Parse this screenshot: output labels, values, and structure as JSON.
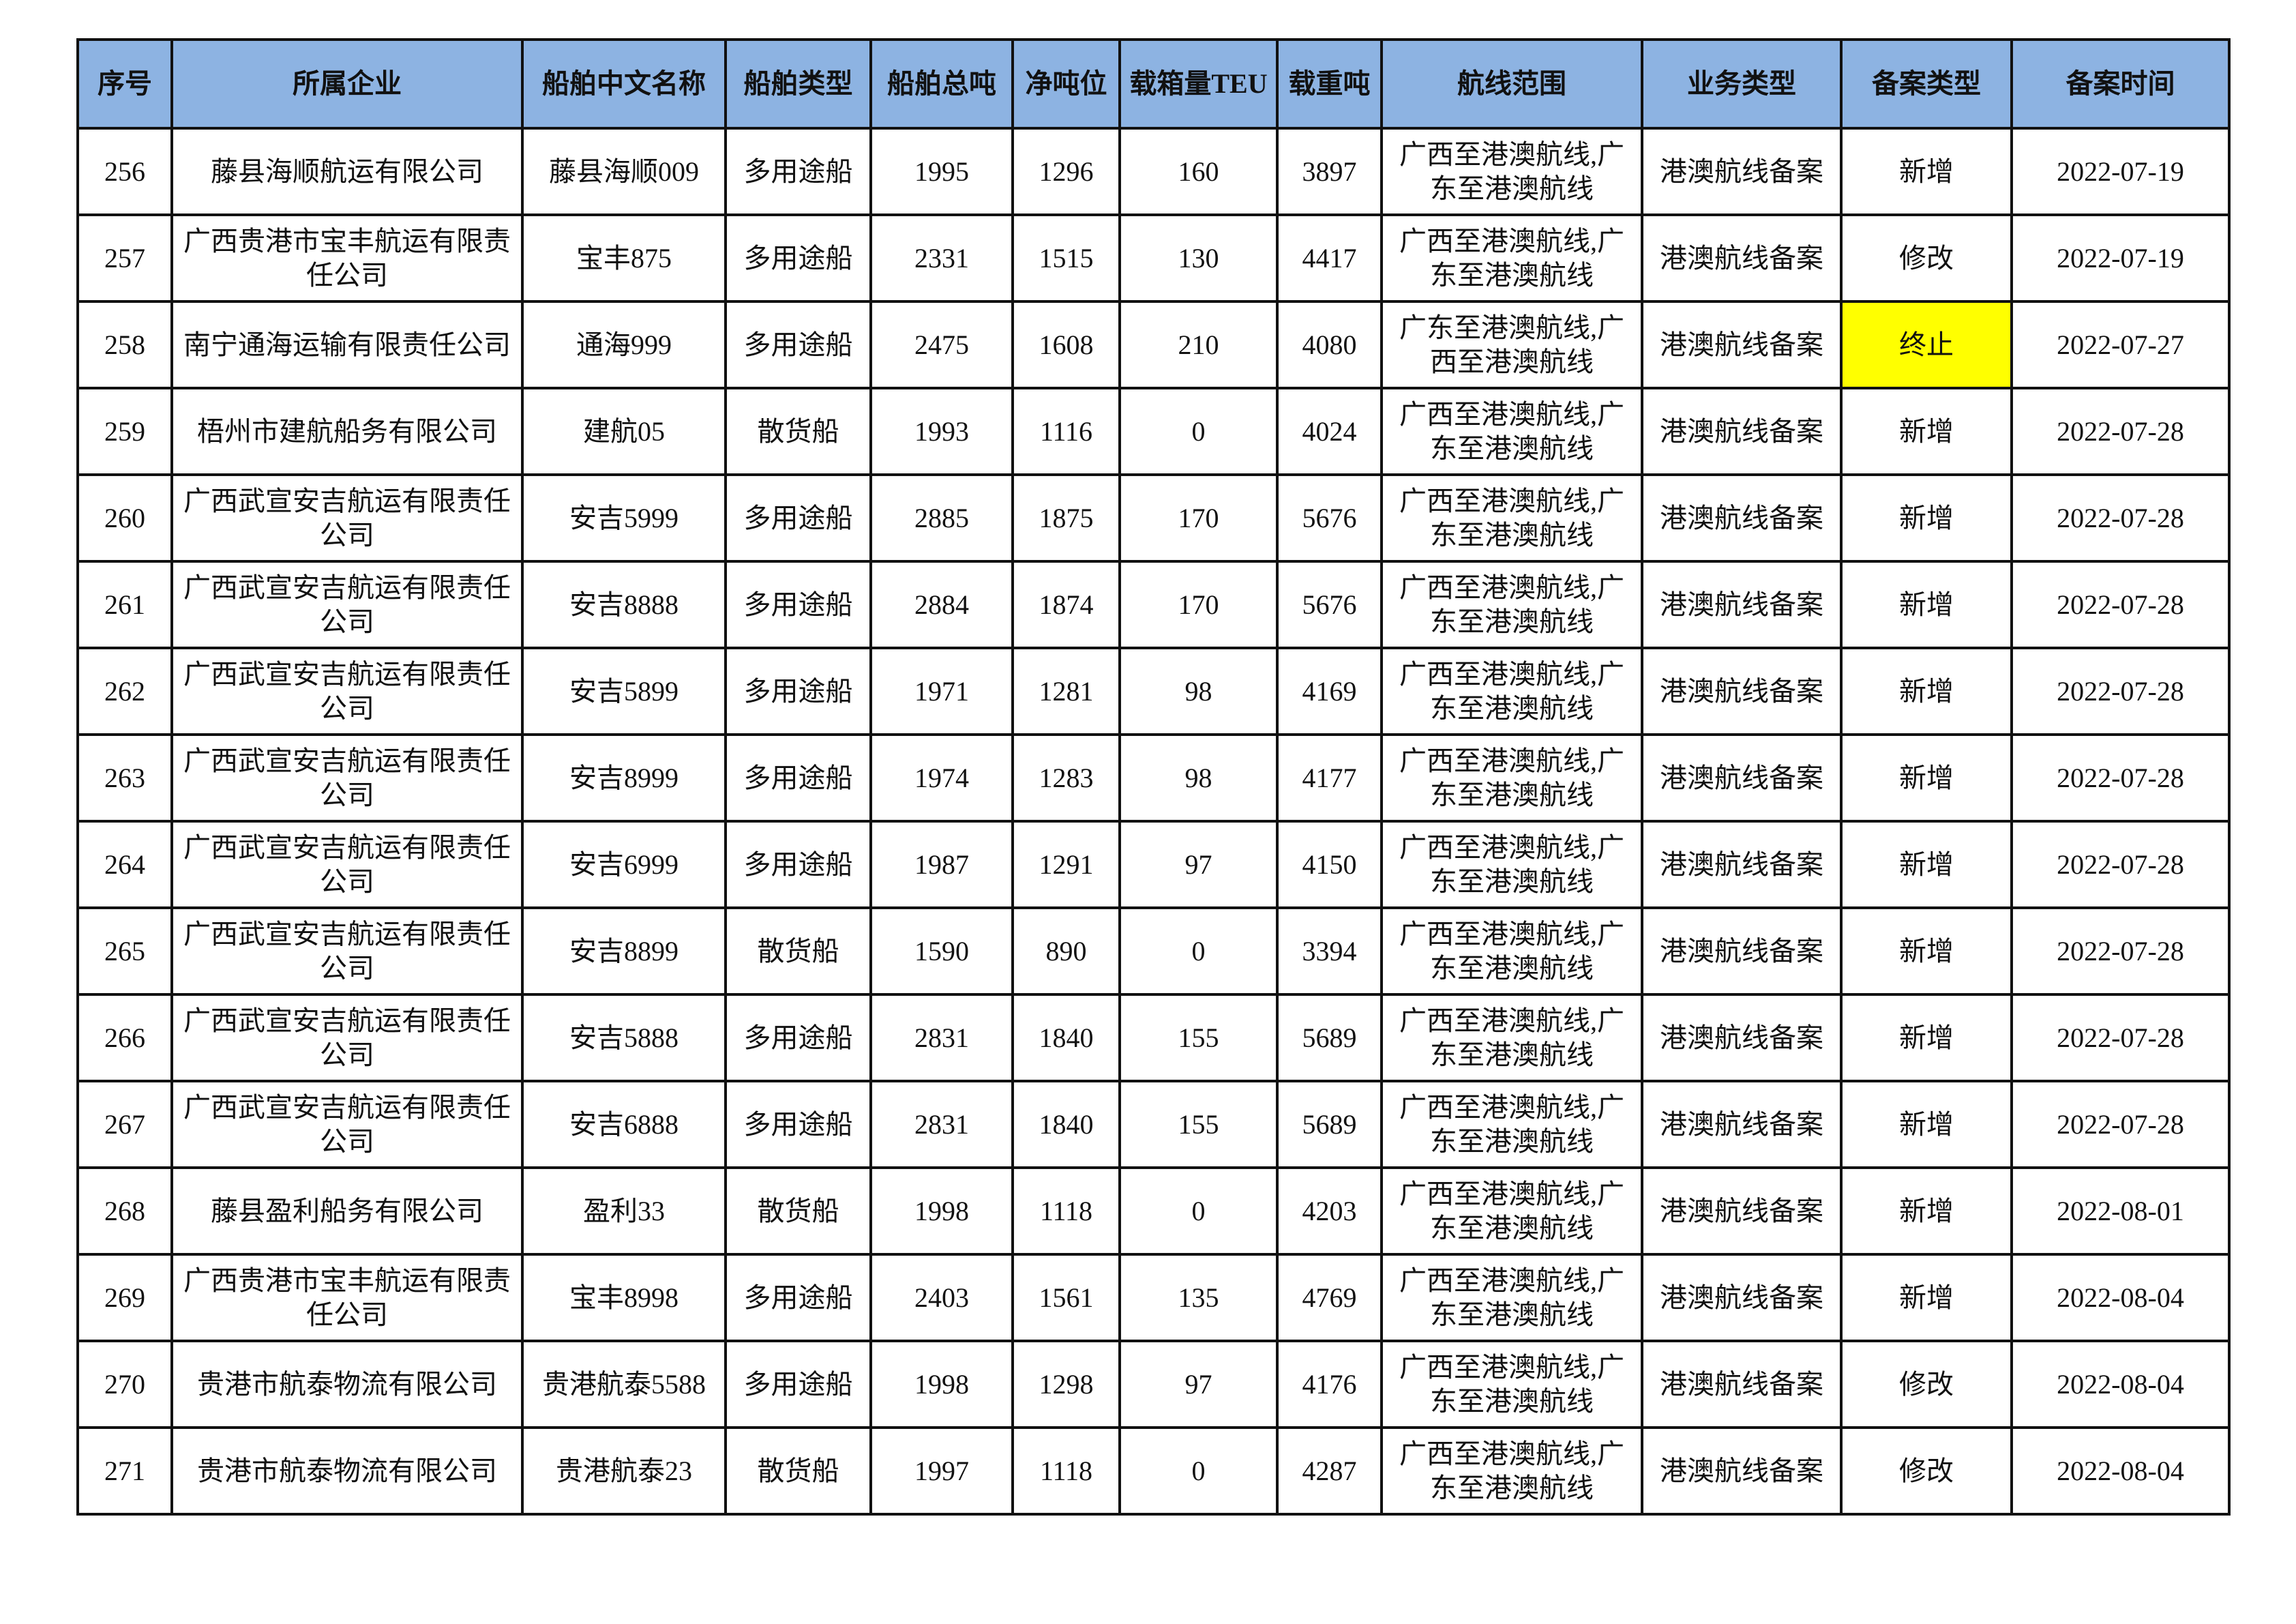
{
  "headers": [
    "序号",
    "所属企业",
    "船舶中文名称",
    "船舶类型",
    "船舶总吨",
    "净吨位",
    "载箱量TEU",
    "载重吨",
    "航线范围",
    "业务类型",
    "备案类型",
    "备案时间"
  ],
  "highlight_color": "#ffff00",
  "header_color": "#8db3e2",
  "rows": [
    {
      "no": "256",
      "company": "藤县海顺航运有限公司",
      "ship": "藤县海顺009",
      "type": "多用途船",
      "gross": "1995",
      "net": "1296",
      "teu": "160",
      "dwt": "3897",
      "route": "广西至港澳航线,广东至港澳航线",
      "business": "港澳航线备案",
      "filing": "新增",
      "date": "2022-07-19"
    },
    {
      "no": "257",
      "company": "广西贵港市宝丰航运有限责任公司",
      "ship": "宝丰875",
      "type": "多用途船",
      "gross": "2331",
      "net": "1515",
      "teu": "130",
      "dwt": "4417",
      "route": "广西至港澳航线,广东至港澳航线",
      "business": "港澳航线备案",
      "filing": "修改",
      "date": "2022-07-19"
    },
    {
      "no": "258",
      "company": "南宁通海运输有限责任公司",
      "ship": "通海999",
      "type": "多用途船",
      "gross": "2475",
      "net": "1608",
      "teu": "210",
      "dwt": "4080",
      "route": "广东至港澳航线,广西至港澳航线",
      "business": "港澳航线备案",
      "filing": "终止",
      "date": "2022-07-27",
      "highlight": true
    },
    {
      "no": "259",
      "company": "梧州市建航船务有限公司",
      "ship": "建航05",
      "type": "散货船",
      "gross": "1993",
      "net": "1116",
      "teu": "0",
      "dwt": "4024",
      "route": "广西至港澳航线,广东至港澳航线",
      "business": "港澳航线备案",
      "filing": "新增",
      "date": "2022-07-28"
    },
    {
      "no": "260",
      "company": "广西武宣安吉航运有限责任公司",
      "ship": "安吉5999",
      "type": "多用途船",
      "gross": "2885",
      "net": "1875",
      "teu": "170",
      "dwt": "5676",
      "route": "广西至港澳航线,广东至港澳航线",
      "business": "港澳航线备案",
      "filing": "新增",
      "date": "2022-07-28"
    },
    {
      "no": "261",
      "company": "广西武宣安吉航运有限责任公司",
      "ship": "安吉8888",
      "type": "多用途船",
      "gross": "2884",
      "net": "1874",
      "teu": "170",
      "dwt": "5676",
      "route": "广西至港澳航线,广东至港澳航线",
      "business": "港澳航线备案",
      "filing": "新增",
      "date": "2022-07-28"
    },
    {
      "no": "262",
      "company": "广西武宣安吉航运有限责任公司",
      "ship": "安吉5899",
      "type": "多用途船",
      "gross": "1971",
      "net": "1281",
      "teu": "98",
      "dwt": "4169",
      "route": "广西至港澳航线,广东至港澳航线",
      "business": "港澳航线备案",
      "filing": "新增",
      "date": "2022-07-28"
    },
    {
      "no": "263",
      "company": "广西武宣安吉航运有限责任公司",
      "ship": "安吉8999",
      "type": "多用途船",
      "gross": "1974",
      "net": "1283",
      "teu": "98",
      "dwt": "4177",
      "route": "广西至港澳航线,广东至港澳航线",
      "business": "港澳航线备案",
      "filing": "新增",
      "date": "2022-07-28"
    },
    {
      "no": "264",
      "company": "广西武宣安吉航运有限责任公司",
      "ship": "安吉6999",
      "type": "多用途船",
      "gross": "1987",
      "net": "1291",
      "teu": "97",
      "dwt": "4150",
      "route": "广西至港澳航线,广东至港澳航线",
      "business": "港澳航线备案",
      "filing": "新增",
      "date": "2022-07-28"
    },
    {
      "no": "265",
      "company": "广西武宣安吉航运有限责任公司",
      "ship": "安吉8899",
      "type": "散货船",
      "gross": "1590",
      "net": "890",
      "teu": "0",
      "dwt": "3394",
      "route": "广西至港澳航线,广东至港澳航线",
      "business": "港澳航线备案",
      "filing": "新增",
      "date": "2022-07-28"
    },
    {
      "no": "266",
      "company": "广西武宣安吉航运有限责任公司",
      "ship": "安吉5888",
      "type": "多用途船",
      "gross": "2831",
      "net": "1840",
      "teu": "155",
      "dwt": "5689",
      "route": "广西至港澳航线,广东至港澳航线",
      "business": "港澳航线备案",
      "filing": "新增",
      "date": "2022-07-28"
    },
    {
      "no": "267",
      "company": "广西武宣安吉航运有限责任公司",
      "ship": "安吉6888",
      "type": "多用途船",
      "gross": "2831",
      "net": "1840",
      "teu": "155",
      "dwt": "5689",
      "route": "广西至港澳航线,广东至港澳航线",
      "business": "港澳航线备案",
      "filing": "新增",
      "date": "2022-07-28"
    },
    {
      "no": "268",
      "company": "藤县盈利船务有限公司",
      "ship": "盈利33",
      "type": "散货船",
      "gross": "1998",
      "net": "1118",
      "teu": "0",
      "dwt": "4203",
      "route": "广西至港澳航线,广东至港澳航线",
      "business": "港澳航线备案",
      "filing": "新增",
      "date": "2022-08-01"
    },
    {
      "no": "269",
      "company": "广西贵港市宝丰航运有限责任公司",
      "ship": "宝丰8998",
      "type": "多用途船",
      "gross": "2403",
      "net": "1561",
      "teu": "135",
      "dwt": "4769",
      "route": "广西至港澳航线,广东至港澳航线",
      "business": "港澳航线备案",
      "filing": "新增",
      "date": "2022-08-04"
    },
    {
      "no": "270",
      "company": "贵港市航泰物流有限公司",
      "ship": "贵港航泰5588",
      "type": "多用途船",
      "gross": "1998",
      "net": "1298",
      "teu": "97",
      "dwt": "4176",
      "route": "广西至港澳航线,广东至港澳航线",
      "business": "港澳航线备案",
      "filing": "修改",
      "date": "2022-08-04"
    },
    {
      "no": "271",
      "company": "贵港市航泰物流有限公司",
      "ship": "贵港航泰23",
      "type": "散货船",
      "gross": "1997",
      "net": "1118",
      "teu": "0",
      "dwt": "4287",
      "route": "广西至港澳航线,广东至港澳航线",
      "business": "港澳航线备案",
      "filing": "修改",
      "date": "2022-08-04"
    }
  ]
}
